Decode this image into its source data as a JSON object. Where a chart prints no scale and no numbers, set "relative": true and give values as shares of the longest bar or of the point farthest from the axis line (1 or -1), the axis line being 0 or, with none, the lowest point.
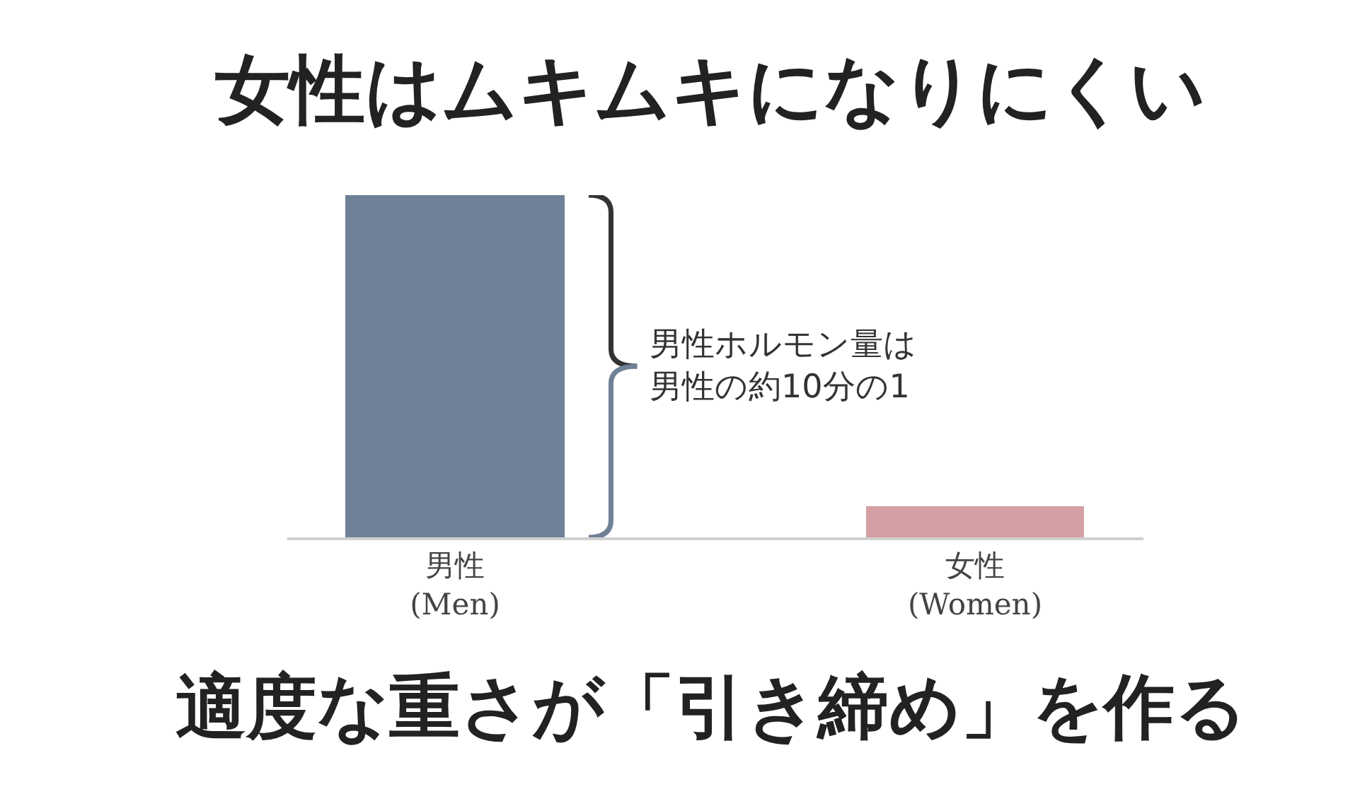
{
  "chart_data": {
    "type": "bar",
    "title": "女性はムキムキになりにくい",
    "categories": [
      "男性\n(Men)",
      "女性\n(Women)"
    ],
    "values": [
      1,
      0.09
    ],
    "colors": [
      "#6e8196",
      "#d4a0a3"
    ],
    "relative": true,
    "annotations": [
      "男性ホルモン量は男性の約10分の1",
      "適度な重さが「引き締め」を作る"
    ]
  }
}
